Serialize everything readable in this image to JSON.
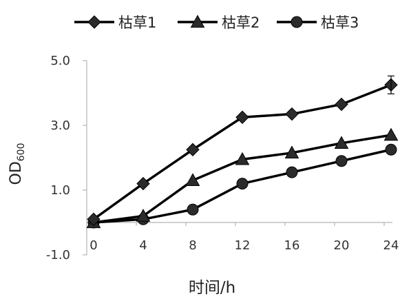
{
  "chart_data": {
    "type": "line",
    "title": "",
    "xlabel": "时间/h",
    "ylabel": "OD",
    "ylabel_sub": "600",
    "x": [
      0,
      4,
      8,
      12,
      16,
      20,
      24
    ],
    "x_ticks": [
      "0",
      "4",
      "8",
      "12",
      "16",
      "20",
      "24"
    ],
    "y_ticks": [
      "-1.0",
      "1.0",
      "3.0",
      "5.0"
    ],
    "ylim": [
      -1.0,
      5.0
    ],
    "grid": false,
    "legend_position": "top",
    "series": [
      {
        "name": "枯草1",
        "marker": "diamond",
        "color": "#000000",
        "values": [
          0.1,
          1.2,
          2.25,
          3.25,
          3.35,
          3.65,
          4.25
        ]
      },
      {
        "name": "枯草2",
        "marker": "triangle",
        "color": "#000000",
        "values": [
          0.0,
          0.2,
          1.3,
          1.95,
          2.15,
          2.45,
          2.7
        ]
      },
      {
        "name": "枯草3",
        "marker": "circle",
        "color": "#000000",
        "values": [
          0.0,
          0.1,
          0.4,
          1.2,
          1.55,
          1.9,
          2.25
        ]
      }
    ]
  }
}
